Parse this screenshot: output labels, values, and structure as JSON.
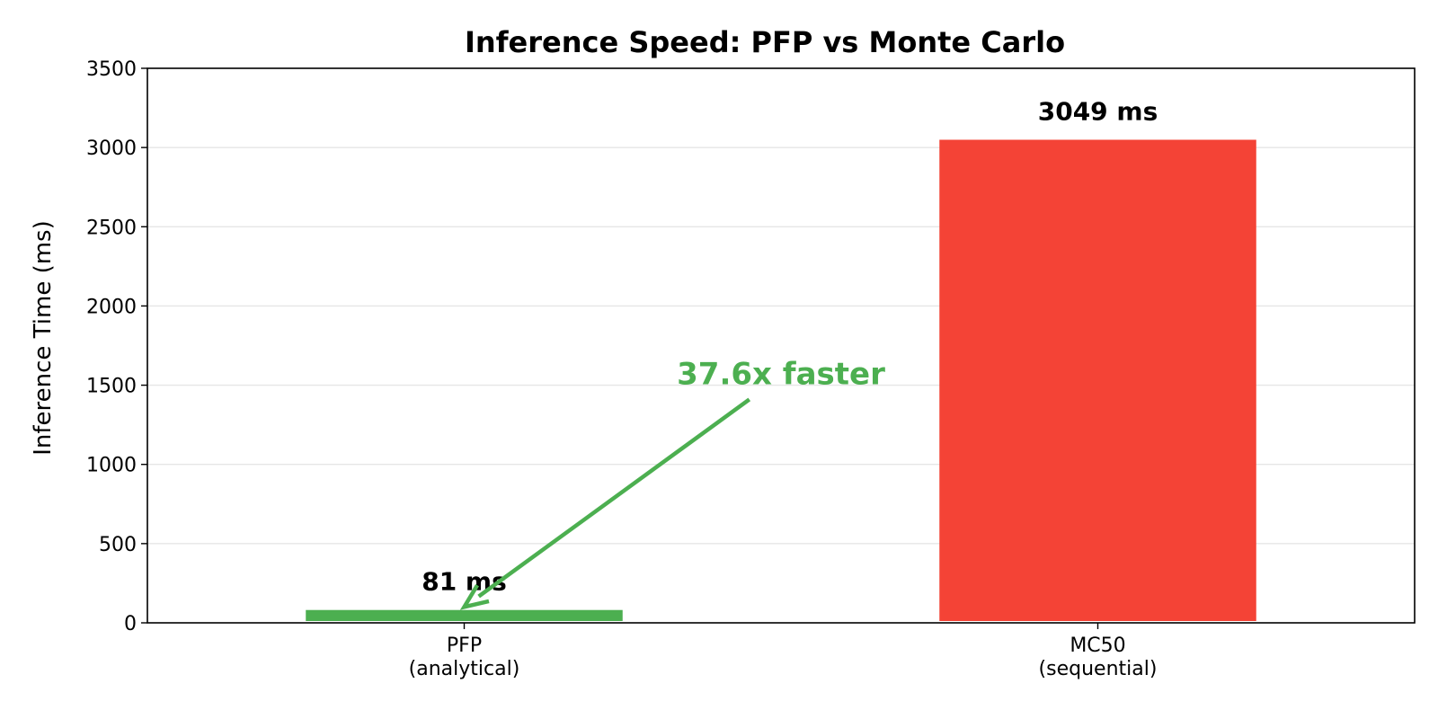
{
  "chart_data": {
    "type": "bar",
    "title": "Inference Speed: PFP vs Monte Carlo",
    "xlabel": "",
    "ylabel": "Inference Time (ms)",
    "ylim": [
      0,
      3500
    ],
    "yticks": [
      0,
      500,
      1000,
      1500,
      2000,
      2500,
      3000,
      3500
    ],
    "grid": "y",
    "categories": [
      [
        "PFP",
        "(analytical)"
      ],
      [
        "MC50",
        "(sequential)"
      ]
    ],
    "values": [
      81,
      3049
    ],
    "colors": [
      "#4caf50",
      "#f44336"
    ],
    "data_labels": [
      "81 ms",
      "3049 ms"
    ],
    "annotation": {
      "text": "37.6x faster",
      "color": "#4caf50",
      "text_x": 0.5,
      "text_y": 1500,
      "arrow_tip_x": 0.0,
      "arrow_tip_y": 100,
      "arrow_tail_x": 0.45,
      "arrow_tail_y": 1410
    }
  }
}
